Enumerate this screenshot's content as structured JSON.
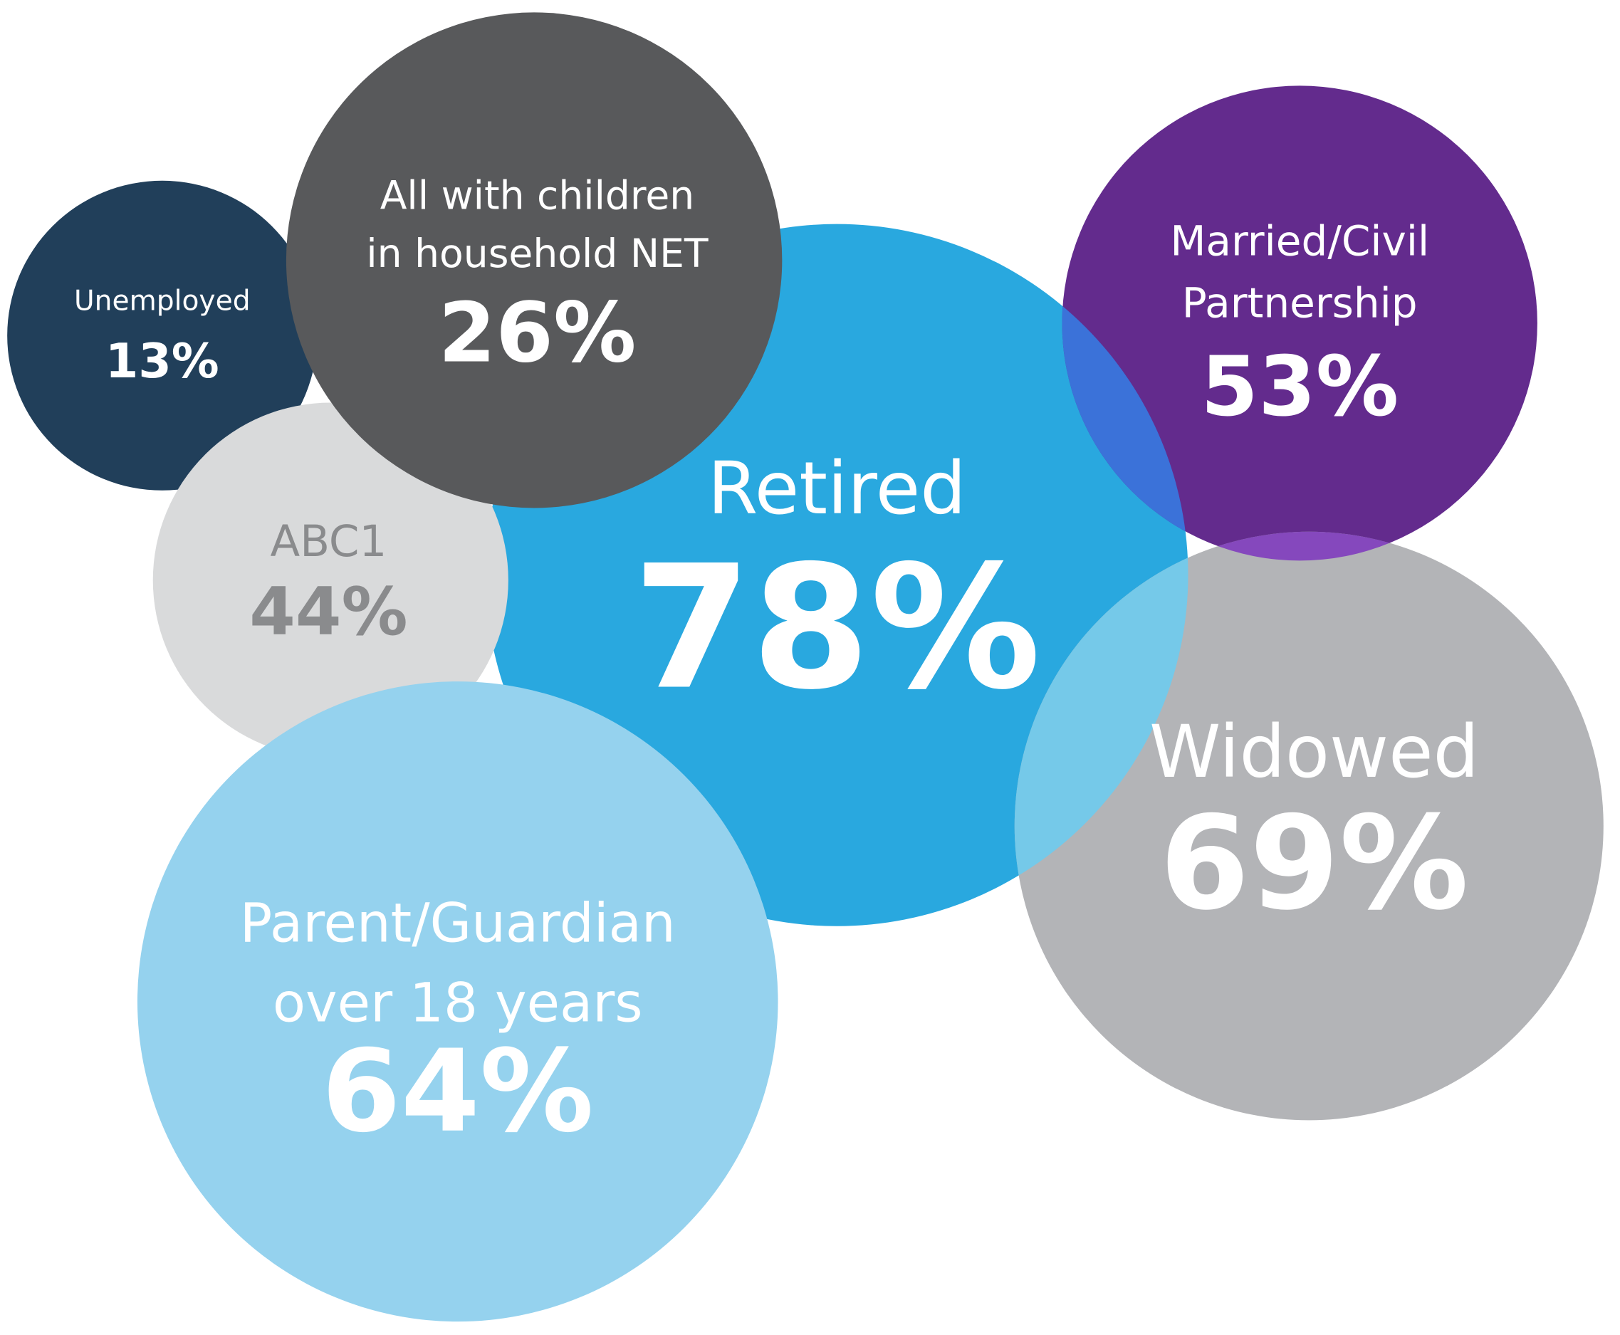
{
  "bubbles": [
    {
      "label": [
        "Unemployed"
      ],
      "value": "13%"
    },
    {
      "label": [
        "All with children",
        "in household NET"
      ],
      "value": "26%"
    },
    {
      "label": [
        "Married/Civil",
        "Partnership"
      ],
      "value": "53%"
    },
    {
      "label": [
        "Retired"
      ],
      "value": "78%"
    },
    {
      "label": [
        "ABC1"
      ],
      "value": "44%"
    },
    {
      "label": [
        "Widowed"
      ],
      "value": "69%"
    },
    {
      "label": [
        "Parent/Guardian",
        "over 18 years"
      ],
      "value": "64%"
    }
  ]
}
